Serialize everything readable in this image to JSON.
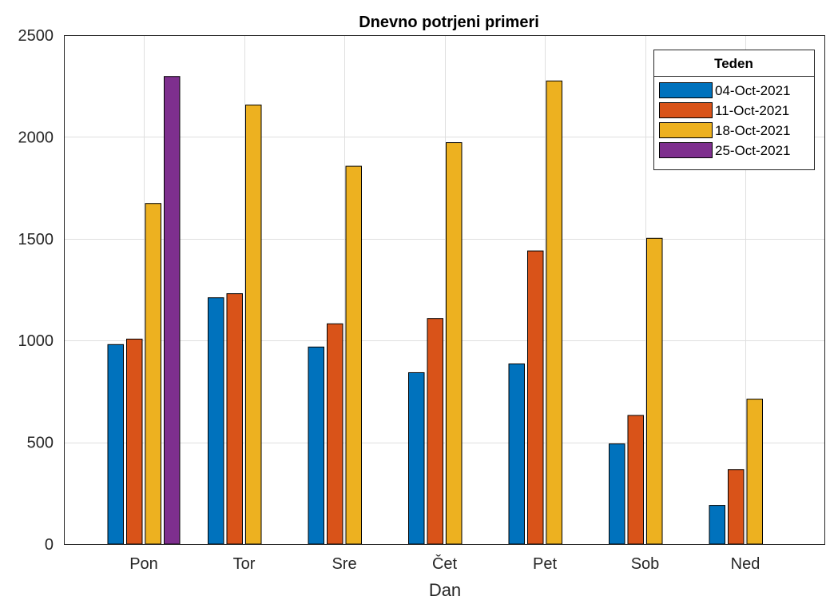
{
  "chart_data": {
    "type": "bar",
    "title": "Dnevno potrjeni primeri",
    "xlabel": "Dan",
    "ylabel": "",
    "ylim": [
      0,
      2500
    ],
    "yticks": [
      0,
      500,
      1000,
      1500,
      2000,
      2500
    ],
    "categories": [
      "Pon",
      "Tor",
      "Sre",
      "Čet",
      "Pet",
      "Sob",
      "Ned"
    ],
    "grid": true,
    "legend_title": "Teden",
    "legend_position": "top-right",
    "series": [
      {
        "name": "04-Oct-2021",
        "color": "#0072BD",
        "values": [
          980,
          1210,
          968,
          842,
          885,
          492,
          190
        ]
      },
      {
        "name": "11-Oct-2021",
        "color": "#D95319",
        "values": [
          1007,
          1230,
          1082,
          1108,
          1440,
          632,
          366
        ]
      },
      {
        "name": "18-Oct-2021",
        "color": "#EDB120",
        "values": [
          1673,
          2157,
          1856,
          1972,
          2275,
          1502,
          712
        ]
      },
      {
        "name": "25-Oct-2021",
        "color": "#7E2F8E",
        "values": [
          2297,
          null,
          null,
          null,
          null,
          null,
          null
        ]
      }
    ]
  }
}
